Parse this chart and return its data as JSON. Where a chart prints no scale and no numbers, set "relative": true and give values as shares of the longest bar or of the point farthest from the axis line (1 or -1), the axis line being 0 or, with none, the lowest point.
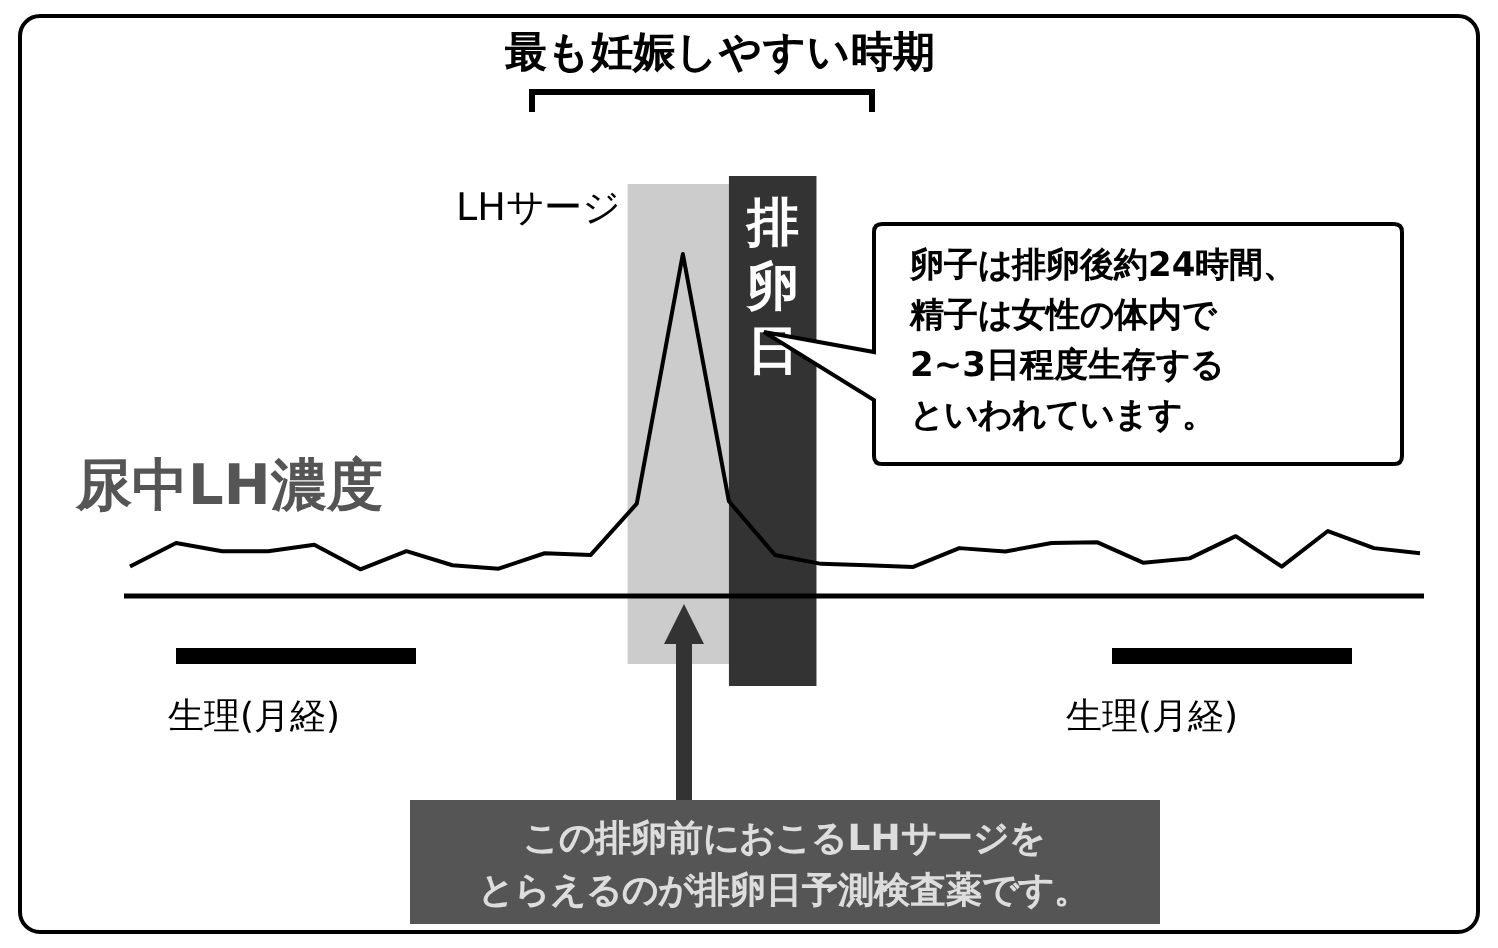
{
  "chart_data": {
    "type": "line",
    "relative": true,
    "title": "最も妊娠しやすい時期",
    "categories": [
      null,
      null,
      null,
      null,
      null,
      null,
      null,
      null,
      null,
      null,
      null,
      null,
      null,
      null,
      null,
      null,
      null,
      null,
      null,
      null,
      null,
      null,
      null,
      null,
      null,
      null,
      null,
      null,
      null
    ],
    "series": [
      {
        "name": "尿中LH濃度",
        "color": "#000000",
        "values": [
          0.086,
          0.155,
          0.131,
          0.131,
          0.15,
          0.078,
          0.131,
          0.09,
          0.08,
          0.125,
          0.12,
          0.27,
          1,
          0.277,
          0.12,
          0.094,
          0.09,
          0.085,
          0.14,
          0.13,
          0.155,
          0.157,
          0.097,
          0.11,
          0.175,
          0.086,
          0.19,
          0.14,
          0.125
        ]
      }
    ],
    "annotations": [
      "LHサージ",
      "卵子は排卵後約24時間、",
      "精子は女性の体内で",
      "2~3日程度生存する",
      "といわれています。",
      "排卵日",
      "生理(月経)",
      "生理(月経)",
      "この排卵前におこるLHサージを",
      "とらえるのが排卵日予測検査薬です。"
    ],
    "marker": "none",
    "line_style": "solid"
  }
}
